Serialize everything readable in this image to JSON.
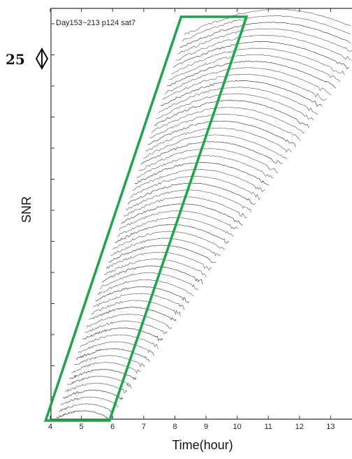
{
  "chart_data": {
    "type": "line",
    "title": "Day153~213 p124 sat7",
    "xlabel": "Time(hour)",
    "ylabel": "SNR",
    "xlim": [
      3.95,
      14
    ],
    "x_ticks": [
      4,
      5,
      6,
      7,
      8,
      9,
      10,
      11,
      12,
      13
    ],
    "scale_label": "25",
    "num_traces": 60,
    "trace_start_first": 4.2,
    "trace_end_first": 5.9,
    "trace_start_last": 8.3,
    "trace_end_last": 14.3,
    "highlight_box": {
      "color": "#1aa64a",
      "bottom_x": [
        3.85,
        5.9
      ],
      "top_x": [
        8.2,
        10.3
      ]
    },
    "grid": false
  }
}
